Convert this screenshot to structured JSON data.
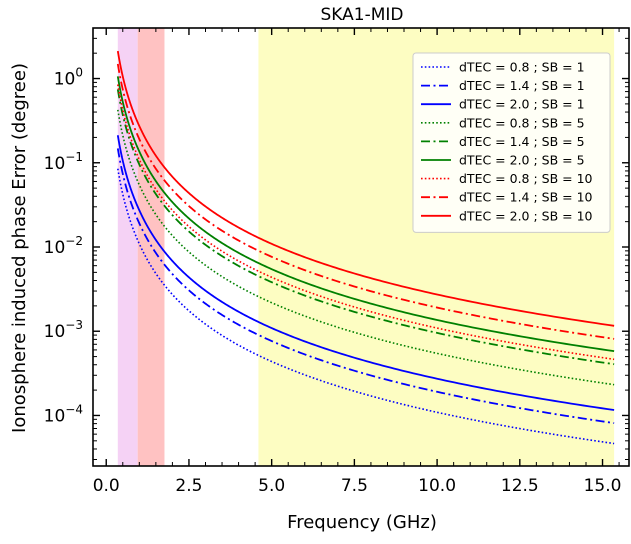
{
  "chart_data": {
    "type": "line",
    "title": "SKA1-MID",
    "xlabel": "Frequency (GHz)",
    "ylabel": "Ionosphere induced phase Error (degree)",
    "xlim": [
      -0.4,
      15.8
    ],
    "ylim_log10": [
      -4.6,
      0.6
    ],
    "y_scale": "log",
    "grid": false,
    "legend_position": "top-right",
    "x_ticks": [
      0.0,
      2.5,
      5.0,
      7.5,
      10.0,
      12.5,
      15.0
    ],
    "x_tick_labels": [
      "0.0",
      "2.5",
      "5.0",
      "7.5",
      "10.0",
      "12.5",
      "15.0"
    ],
    "y_ticks": [
      1,
      0.1,
      0.01,
      0.001,
      0.0001
    ],
    "y_tick_labels": [
      {
        "base": "10",
        "exp": "0"
      },
      {
        "base": "10",
        "exp": "−1"
      },
      {
        "base": "10",
        "exp": "−2"
      },
      {
        "base": "10",
        "exp": "−3"
      },
      {
        "base": "10",
        "exp": "−4"
      }
    ],
    "bands": [
      {
        "x0": 0.35,
        "x1": 0.95,
        "color": "#f5d2f5"
      },
      {
        "x0": 0.95,
        "x1": 1.76,
        "color": "#ffc2c2"
      },
      {
        "x0": 4.6,
        "x1": 15.35,
        "color": "#fdfdc2"
      }
    ],
    "x_range_curves": [
      0.35,
      15.35
    ],
    "series": [
      {
        "name": "dTEC = 0.8 ; SB = 1",
        "color": "#0000ff",
        "dash": "dotted",
        "values_at_x": [
          [
            0.35,
            0.085
          ],
          [
            1.0,
            0.0109
          ],
          [
            5.0,
            0.000437
          ],
          [
            10.0,
            0.000109
          ],
          [
            15.35,
            4.64e-05
          ]
        ]
      },
      {
        "name": "dTEC = 1.4 ; SB = 1",
        "color": "#0000ff",
        "dash": "dashdot",
        "values_at_x": [
          [
            0.35,
            0.148
          ],
          [
            1.0,
            0.0191
          ],
          [
            5.0,
            0.000765
          ],
          [
            10.0,
            0.000191
          ],
          [
            15.35,
            8.12e-05
          ]
        ]
      },
      {
        "name": "dTEC = 2.0 ; SB = 1",
        "color": "#0000ff",
        "dash": "solid",
        "values_at_x": [
          [
            0.35,
            0.212
          ],
          [
            1.0,
            0.0273
          ],
          [
            5.0,
            0.00109
          ],
          [
            10.0,
            0.000273
          ],
          [
            15.35,
            0.000116
          ]
        ]
      },
      {
        "name": "dTEC = 0.8 ; SB = 5",
        "color": "#008000",
        "dash": "dotted",
        "values_at_x": [
          [
            0.35,
            0.425
          ],
          [
            1.0,
            0.0546
          ],
          [
            5.0,
            0.00218
          ],
          [
            10.0,
            0.000546
          ],
          [
            15.35,
            0.000232
          ]
        ]
      },
      {
        "name": "dTEC = 1.4 ; SB = 5",
        "color": "#008000",
        "dash": "dashdot",
        "values_at_x": [
          [
            0.35,
            0.743
          ],
          [
            1.0,
            0.0955
          ],
          [
            5.0,
            0.00382
          ],
          [
            10.0,
            0.000955
          ],
          [
            15.35,
            0.000406
          ]
        ]
      },
      {
        "name": "dTEC = 2.0 ; SB = 5",
        "color": "#008000",
        "dash": "solid",
        "values_at_x": [
          [
            0.35,
            1.06
          ],
          [
            1.0,
            0.136
          ],
          [
            5.0,
            0.00546
          ],
          [
            10.0,
            0.00136
          ],
          [
            15.35,
            0.00058
          ]
        ]
      },
      {
        "name": "dTEC = 0.8 ; SB = 10",
        "color": "#ff0000",
        "dash": "dotted",
        "values_at_x": [
          [
            0.35,
            0.85
          ],
          [
            1.0,
            0.109
          ],
          [
            5.0,
            0.00437
          ],
          [
            10.0,
            0.00109
          ],
          [
            15.35,
            0.000464
          ]
        ]
      },
      {
        "name": "dTEC = 1.4 ; SB = 10",
        "color": "#ff0000",
        "dash": "dashdot",
        "values_at_x": [
          [
            0.35,
            1.49
          ],
          [
            1.0,
            0.191
          ],
          [
            5.0,
            0.00765
          ],
          [
            10.0,
            0.00191
          ],
          [
            15.35,
            0.000812
          ]
        ]
      },
      {
        "name": "dTEC = 2.0 ; SB = 10",
        "color": "#ff0000",
        "dash": "solid",
        "values_at_x": [
          [
            0.35,
            2.12
          ],
          [
            1.0,
            0.273
          ],
          [
            5.0,
            0.0109
          ],
          [
            10.0,
            0.00273
          ],
          [
            15.35,
            0.00116
          ]
        ]
      }
    ]
  }
}
